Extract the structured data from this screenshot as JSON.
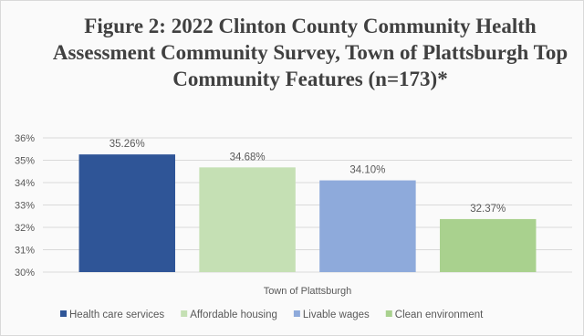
{
  "chart_data": {
    "type": "bar",
    "title": "Figure 2: 2022 Clinton County Community Health Assessment Community Survey, Town of Plattsburgh Top Community Features (n=173)*",
    "categories": [
      "Town of Plattsburgh"
    ],
    "series": [
      {
        "name": "Health care services",
        "values": [
          35.26
        ],
        "label": "35.26%",
        "color": "#2f5597"
      },
      {
        "name": "Affordable housing",
        "values": [
          34.68
        ],
        "label": "34.68%",
        "color": "#c5e0b4"
      },
      {
        "name": "Livable wages",
        "values": [
          34.1
        ],
        "label": "34.10%",
        "color": "#8eaadb"
      },
      {
        "name": "Clean environment",
        "values": [
          32.37
        ],
        "label": "32.37%",
        "color": "#a9d18e"
      }
    ],
    "y_ticks": [
      "30%",
      "31%",
      "32%",
      "33%",
      "34%",
      "35%",
      "36%"
    ],
    "ylim": [
      30,
      36
    ],
    "ylabel": "",
    "xlabel": "",
    "grid": true,
    "legend_position": "bottom"
  }
}
